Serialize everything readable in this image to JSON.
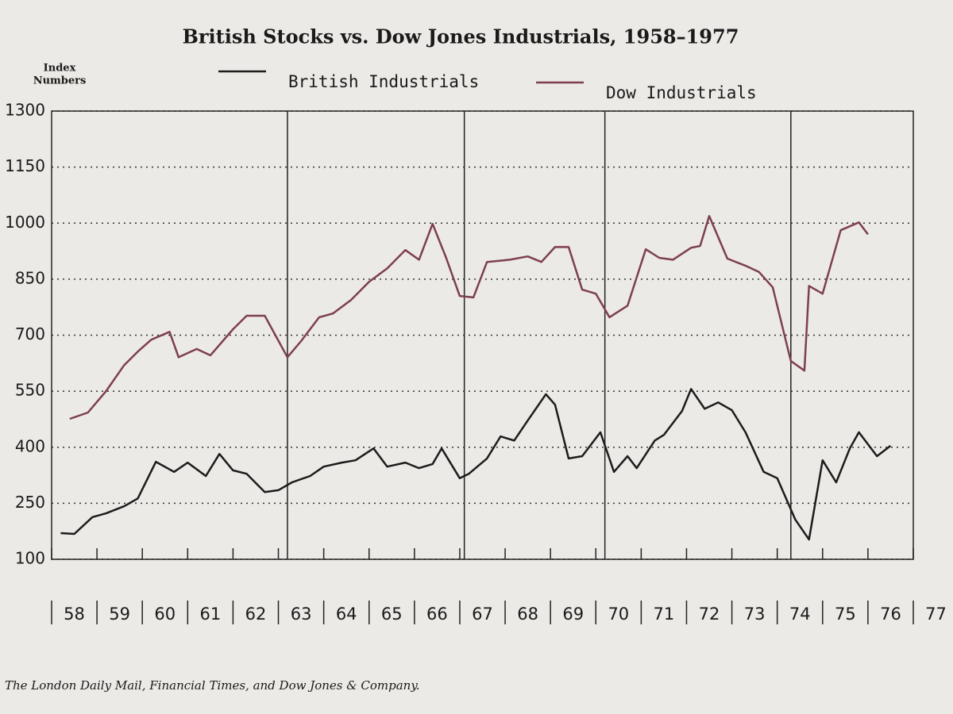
{
  "chart_data": {
    "type": "line",
    "title": "British Stocks vs. Dow Jones Industrials, 1958–1977",
    "ylabel": [
      "Index",
      "Numbers"
    ],
    "source": "The London Daily Mail, Financial Times, and Dow Jones & Company.",
    "xlim": [
      58,
      77
    ],
    "xticks": [
      58,
      59,
      60,
      61,
      62,
      63,
      64,
      65,
      66,
      67,
      68,
      69,
      70,
      71,
      72,
      73,
      74,
      75,
      76,
      77
    ],
    "ylim": [
      100,
      1300
    ],
    "yticks": [
      100,
      250,
      400,
      550,
      700,
      850,
      1000,
      1150,
      1300
    ],
    "grid": true,
    "reference_lines": [
      63.2,
      67.1,
      70.2,
      74.3
    ],
    "legend": "top",
    "series": [
      {
        "name": "British Industrials",
        "color": "#1c1c1c",
        "x": [
          58.2,
          58.5,
          58.9,
          59.2,
          59.6,
          59.9,
          60.3,
          60.7,
          61.0,
          61.4,
          61.7,
          62.0,
          62.3,
          62.7,
          63.0,
          63.3,
          63.7,
          64.0,
          64.4,
          64.7,
          65.1,
          65.4,
          65.8,
          66.1,
          66.4,
          66.6,
          67.0,
          67.2,
          67.6,
          67.9,
          68.2,
          68.5,
          68.9,
          69.1,
          69.4,
          69.7,
          70.1,
          70.4,
          70.7,
          70.9,
          71.3,
          71.5,
          71.9,
          72.1,
          72.4,
          72.7,
          73.0,
          73.3,
          73.7,
          74.0,
          74.4,
          74.7,
          75.0,
          75.3,
          75.6,
          75.8,
          76.2,
          76.5
        ],
        "values": [
          170,
          168,
          213,
          223,
          242,
          263,
          361,
          334,
          359,
          323,
          382,
          338,
          329,
          280,
          285,
          306,
          323,
          348,
          359,
          365,
          397,
          348,
          359,
          344,
          355,
          397,
          317,
          329,
          370,
          429,
          418,
          472,
          542,
          514,
          370,
          376,
          440,
          334,
          376,
          344,
          418,
          433,
          497,
          556,
          503,
          520,
          499,
          440,
          334,
          317,
          206,
          153,
          365,
          306,
          397,
          440,
          376,
          404
        ]
      },
      {
        "name": "Dow Industrials",
        "color": "#7d3f4e",
        "x": [
          58.4,
          58.8,
          59.2,
          59.6,
          59.9,
          60.2,
          60.6,
          60.8,
          61.2,
          61.5,
          62.0,
          62.3,
          62.7,
          63.2,
          63.5,
          63.9,
          64.2,
          64.6,
          65.0,
          65.4,
          65.8,
          66.1,
          66.4,
          66.7,
          67.0,
          67.3,
          67.6,
          68.1,
          68.5,
          68.8,
          69.1,
          69.4,
          69.7,
          70.0,
          70.3,
          70.7,
          71.1,
          71.4,
          71.7,
          72.1,
          72.3,
          72.5,
          72.9,
          73.3,
          73.6,
          73.9,
          74.3,
          74.6,
          74.7,
          75.0,
          75.4,
          75.8,
          76.0
        ],
        "values": [
          476,
          493,
          550,
          620,
          656,
          688,
          709,
          641,
          663,
          646,
          716,
          752,
          752,
          641,
          684,
          748,
          758,
          794,
          843,
          879,
          928,
          902,
          998,
          907,
          805,
          801,
          896,
          902,
          911,
          896,
          936,
          936,
          822,
          811,
          748,
          779,
          930,
          907,
          902,
          934,
          939,
          1019,
          905,
          886,
          869,
          828,
          631,
          605,
          832,
          811,
          981,
          1002,
          970
        ]
      }
    ]
  }
}
